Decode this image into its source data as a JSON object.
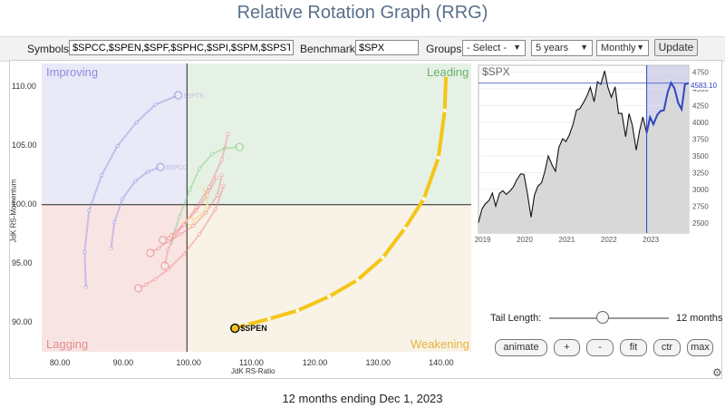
{
  "page": {
    "title": "Relative Rotation Graph (RRG)",
    "footer": "12 months ending Dec 1, 2023"
  },
  "controls": {
    "symbols_label": "Symbols:",
    "symbols_value": "$SPCC,$SPEN,$SPF,$SPHC,$SPI,$SPM,$SPST,$",
    "benchmark_label": "Benchmark:",
    "benchmark_value": "$SPX",
    "groups_label": "Groups:",
    "groups_selected": "- Select -",
    "period_selected": "5 years",
    "frequency_selected": "Monthly",
    "update_label": "Update"
  },
  "rrg": {
    "quadrants": {
      "improving": "Improving",
      "leading": "Leading",
      "lagging": "Lagging",
      "weakening": "Weakening"
    },
    "colors": {
      "improving": "#e9e9f7",
      "leading": "#e6f1e6",
      "lagging": "#f9e4e4",
      "weakening": "#f8f3e6",
      "highlight": "#f5c518"
    },
    "xlabel": "JdK RS-Ratio",
    "ylabel": "JdK RS-Momentum",
    "xticks": [
      "80.00",
      "90.00",
      "100.00",
      "110.00",
      "120.00",
      "130.00",
      "140.00"
    ],
    "yticks": [
      "110.00",
      "105.00",
      "100.00",
      "95.00",
      "90.00"
    ],
    "highlight_symbol": "$SPEN",
    "faded_tail_labels": [
      "$SPTS",
      "$SPCC",
      "$SPF"
    ]
  },
  "chart_data": [
    {
      "type": "scatter",
      "title": "",
      "xlabel": "JdK RS-Ratio",
      "ylabel": "JdK RS-Momentum",
      "xlim": [
        77,
        145
      ],
      "ylim": [
        87.5,
        112
      ],
      "series": [
        {
          "name": "$SPEN",
          "color": "#f5c518",
          "x": [
            141.0,
            140.8,
            139.8,
            137.5,
            134.5,
            131.0,
            127.0,
            122.5,
            117.5,
            113.0,
            109.5,
            107.6
          ],
          "y": [
            111.0,
            108.0,
            104.0,
            100.5,
            98.0,
            95.5,
            93.6,
            92.2,
            91.0,
            90.3,
            89.8,
            89.5
          ]
        },
        {
          "name": "$SPTS",
          "color": "#8f8fe0",
          "x": [
            84,
            83.8,
            84.5,
            86.5,
            89,
            92,
            95,
            98.6
          ],
          "y": [
            93,
            96,
            99.5,
            102.5,
            105,
            107,
            108.5,
            109.3
          ]
        },
        {
          "name": "$SPCC",
          "color": "#8f8fe0",
          "x": [
            88,
            88.5,
            89.8,
            91.8,
            93.8,
            95.8
          ],
          "y": [
            96.3,
            98.5,
            100.5,
            102,
            102.8,
            103.2
          ]
        },
        {
          "name": "",
          "color": "#7fcf7f",
          "x": [
            97.5,
            98.8,
            100.5,
            102,
            104,
            106,
            108.3
          ],
          "y": [
            96.8,
            99,
            101.3,
            103.1,
            104.3,
            104.8,
            104.9
          ]
        },
        {
          "name": "",
          "color": "#e88",
          "x": [
            106.5,
            105.5,
            103.5,
            101.5,
            99.5,
            98,
            97,
            96.5
          ],
          "y": [
            106,
            103.8,
            101.5,
            99.8,
            98.3,
            97.3,
            96.2,
            94.8
          ]
        },
        {
          "name": "",
          "color": "#e88",
          "x": [
            105.5,
            104.8,
            103,
            101,
            99,
            97,
            95.5,
            94.2
          ],
          "y": [
            102.5,
            100.8,
            99.3,
            98.2,
            97.5,
            96.9,
            96.3,
            95.9
          ]
        },
        {
          "name": "",
          "color": "#e88",
          "x": [
            105.8,
            104.5,
            102,
            99.5,
            97,
            95,
            93.5,
            92.3
          ],
          "y": [
            101.6,
            99.6,
            97.5,
            95.8,
            94.5,
            93.7,
            93.2,
            92.9
          ]
        },
        {
          "name": "",
          "color": "#e88",
          "x": [
            104.7,
            103.2,
            101.5,
            99.5,
            97.5,
            96.2
          ],
          "y": [
            102.3,
            100.8,
            99.5,
            98.3,
            97.4,
            97.0
          ]
        },
        {
          "name": "",
          "color": "#f0d070",
          "x": [
            102.4,
            103.3,
            103.2,
            102,
            100.5
          ],
          "y": [
            101.5,
            100.8,
            99.9,
            99.0,
            98.6
          ]
        }
      ]
    },
    {
      "type": "line",
      "title": "$SPX",
      "price_label": "4583.10",
      "xticks": [
        "2019",
        "2020",
        "2021",
        "2022",
        "2023"
      ],
      "yticks": [
        "4750",
        "4500",
        "4250",
        "4000",
        "3750",
        "3500",
        "3250",
        "3000",
        "2750",
        "2500"
      ],
      "ylim": [
        2350,
        4850
      ],
      "x": [
        2018.92,
        2019.0,
        2019.08,
        2019.17,
        2019.25,
        2019.33,
        2019.42,
        2019.5,
        2019.58,
        2019.67,
        2019.75,
        2019.83,
        2019.92,
        2020.0,
        2020.08,
        2020.17,
        2020.25,
        2020.33,
        2020.42,
        2020.5,
        2020.58,
        2020.67,
        2020.75,
        2020.83,
        2020.92,
        2021.0,
        2021.08,
        2021.17,
        2021.25,
        2021.33,
        2021.42,
        2021.5,
        2021.58,
        2021.67,
        2021.75,
        2021.83,
        2021.92,
        2022.0,
        2022.08,
        2022.17,
        2022.25,
        2022.33,
        2022.42,
        2022.5,
        2022.58,
        2022.67,
        2022.75,
        2022.83,
        2022.92,
        2023.0,
        2023.08,
        2023.17,
        2023.25,
        2023.33,
        2023.42,
        2023.5,
        2023.58,
        2023.67,
        2023.75,
        2023.83,
        2023.92
      ],
      "y": [
        2506,
        2704,
        2784,
        2834,
        2946,
        2752,
        2942,
        2980,
        2926,
        2977,
        3038,
        3141,
        3231,
        3226,
        2954,
        2585,
        2912,
        3044,
        3100,
        3271,
        3500,
        3363,
        3270,
        3621,
        3756,
        3714,
        3811,
        3973,
        4181,
        4204,
        4298,
        4395,
        4523,
        4308,
        4605,
        4567,
        4766,
        4516,
        4374,
        4530,
        4132,
        4132,
        3785,
        4130,
        3955,
        3586,
        3872,
        4080,
        3840,
        4077,
        3970,
        4109,
        4169,
        4180,
        4450,
        4589,
        4508,
        4288,
        4194,
        4568,
        4583
      ],
      "shaded_from": 2022.92
    }
  ],
  "tail": {
    "label": "Tail Length:",
    "value": "12 months",
    "fraction": 0.45
  },
  "buttons": {
    "animate": "animate",
    "plus": "+",
    "minus": "-",
    "fit": "fit",
    "ctr": "ctr",
    "max": "max"
  }
}
